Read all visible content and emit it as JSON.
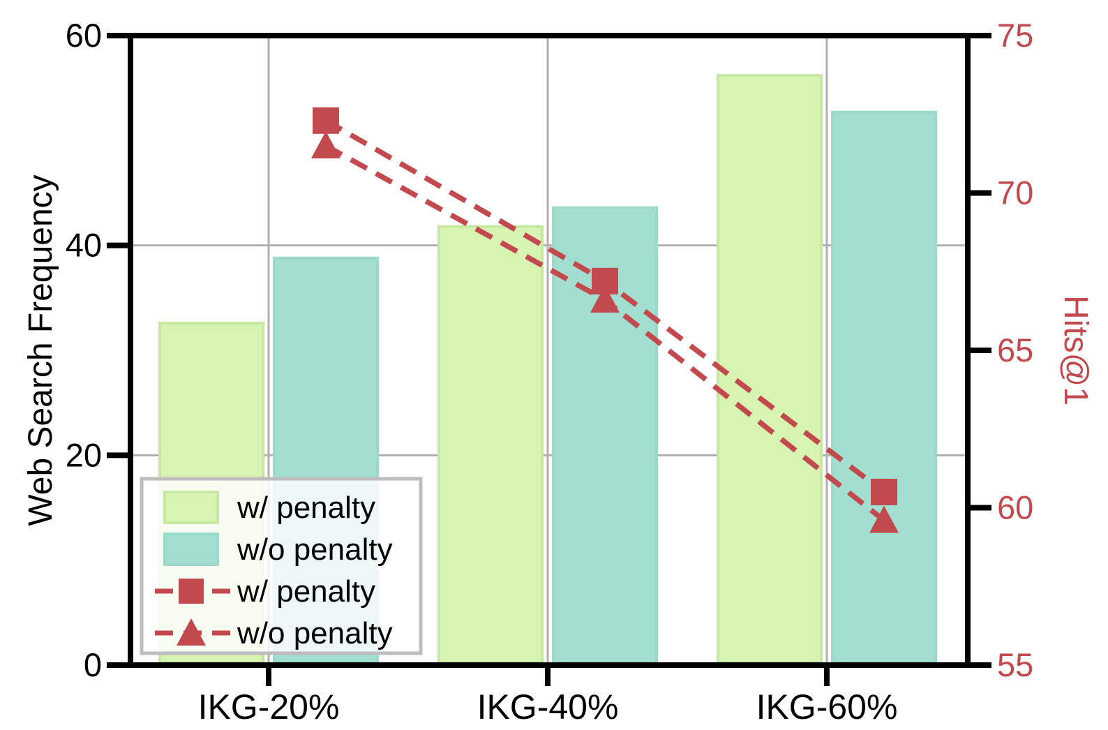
{
  "chart_data": {
    "type": "bar+line",
    "categories": [
      "IKG-20%",
      "IKG-40%",
      "IKG-60%"
    ],
    "left_axis": {
      "label": "Web Search Frequency",
      "ticks": [
        0,
        20,
        40,
        60
      ],
      "range": [
        0,
        60
      ],
      "color": "#000000"
    },
    "right_axis": {
      "label": "Hits@1",
      "ticks": [
        55,
        60,
        65,
        70,
        75
      ],
      "range": [
        55,
        75
      ],
      "color": "#c2494d"
    },
    "bar_series": [
      {
        "name": "w/ penalty",
        "axis": "left",
        "color": "#d7f4b2",
        "edge": "#c7e7a2",
        "values": [
          32.6,
          41.8,
          56.2
        ]
      },
      {
        "name": "w/o penalty",
        "axis": "left",
        "color": "#a3dfd0",
        "edge": "#9bd9c8",
        "values": [
          38.8,
          43.6,
          52.7
        ]
      }
    ],
    "line_series": [
      {
        "name": "w/ penalty",
        "axis": "right",
        "marker": "square",
        "style": "dashed",
        "color": "#c2494d",
        "values": [
          72.3,
          67.2,
          60.5
        ]
      },
      {
        "name": "w/o penalty",
        "axis": "right",
        "marker": "triangle",
        "style": "dashed",
        "color": "#c2494d",
        "values": [
          71.5,
          66.6,
          59.6
        ]
      }
    ],
    "legend": {
      "position": "lower-left",
      "items": [
        {
          "label": "w/ penalty",
          "swatch": "bar-green"
        },
        {
          "label": "w/o penalty",
          "swatch": "bar-teal"
        },
        {
          "label": "w/ penalty",
          "swatch": "line-square"
        },
        {
          "label": "w/o penalty",
          "swatch": "line-triangle"
        }
      ]
    },
    "grid": true,
    "colors": {
      "accent_red": "#c2494d",
      "grid": "#b0b0b0",
      "spine": "#000000",
      "legend_border": "#bdbdbd",
      "legend_bg_alpha": "0.82"
    }
  }
}
